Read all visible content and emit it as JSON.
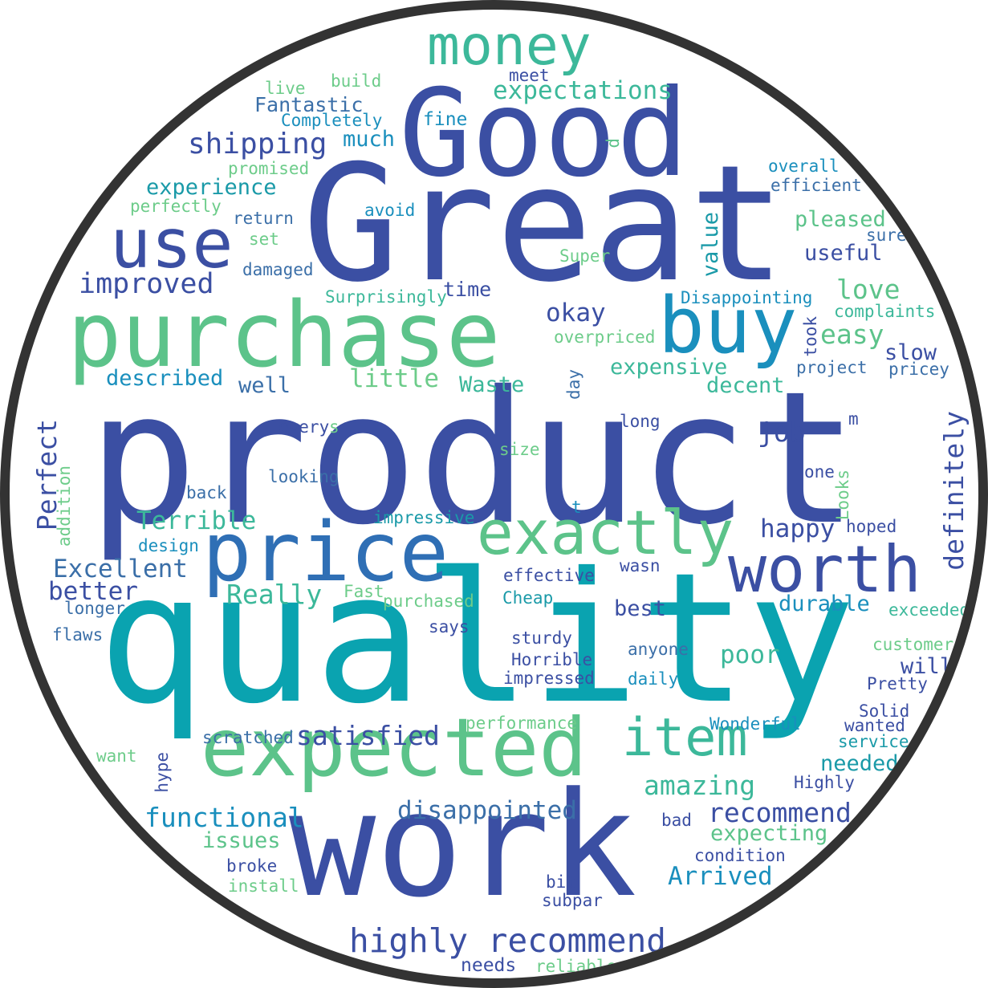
{
  "palette": {
    "blue": "#3b4fa3",
    "teal": "#00a0b0",
    "green": "#5cc38a",
    "ltgreen": "#6dcc8a",
    "mid": "#2f6fb5",
    "cyan": "#1a8fbd"
  },
  "words": [
    {
      "text": "product",
      "color": "#3b4fa3"
    },
    {
      "text": "quality",
      "color": "#0aa3b0"
    },
    {
      "text": "Great",
      "color": "#3b4fa3"
    },
    {
      "text": "Good",
      "color": "#3b4fa3"
    },
    {
      "text": "work",
      "color": "#3b4fa3"
    },
    {
      "text": "purchase",
      "color": "#5cc38a"
    },
    {
      "text": "expected",
      "color": "#5cc38a"
    },
    {
      "text": "price",
      "color": "#2f6fb5"
    },
    {
      "text": "money",
      "color": "#3cb89a"
    },
    {
      "text": "buy",
      "color": "#1a8fbd"
    },
    {
      "text": "use",
      "color": "#3b4fa3"
    },
    {
      "text": "worth",
      "color": "#3b4fa3"
    },
    {
      "text": "exactly",
      "color": "#5cc38a"
    },
    {
      "text": "item",
      "color": "#3cb89a"
    },
    {
      "text": "highly recommend",
      "color": "#3b4fa3"
    },
    {
      "text": "expectations",
      "color": "#3cb89a"
    },
    {
      "text": "shipping",
      "color": "#3b4fa3"
    },
    {
      "text": "Fantastic",
      "color": "#3b6fa8"
    },
    {
      "text": "Completely",
      "color": "#1a8fbd"
    },
    {
      "text": "build",
      "color": "#6dcc8a"
    },
    {
      "text": "live",
      "color": "#6dcc8a"
    },
    {
      "text": "meet",
      "color": "#3b4fa3"
    },
    {
      "text": "fine",
      "color": "#1a8fbd"
    },
    {
      "text": "much",
      "color": "#1a8fbd"
    },
    {
      "text": "promised",
      "color": "#6dcc8a"
    },
    {
      "text": "experience",
      "color": "#1a9aa8"
    },
    {
      "text": "perfectly",
      "color": "#6dcc8a"
    },
    {
      "text": "return",
      "color": "#3b6fa8"
    },
    {
      "text": "avoid",
      "color": "#1a8fbd"
    },
    {
      "text": "set",
      "color": "#6dcc8a"
    },
    {
      "text": "damaged",
      "color": "#3b6fa8"
    },
    {
      "text": "improved",
      "color": "#3b4fa3"
    },
    {
      "text": "Super",
      "color": "#6dcc8a"
    },
    {
      "text": "time",
      "color": "#3b4fa3"
    },
    {
      "text": "Surprisingly",
      "color": "#3cb89a"
    },
    {
      "text": "overall",
      "color": "#1a8fbd"
    },
    {
      "text": "efficient",
      "color": "#3b6fa8"
    },
    {
      "text": "pleased",
      "color": "#5cc38a"
    },
    {
      "text": "sure",
      "color": "#3b6fa8"
    },
    {
      "text": "useful",
      "color": "#3b4fa3"
    },
    {
      "text": "Disappointing",
      "color": "#1a8fbd"
    },
    {
      "text": "love",
      "color": "#5cc38a"
    },
    {
      "text": "complaints",
      "color": "#3cb89a"
    },
    {
      "text": "okay",
      "color": "#3b4fa3"
    },
    {
      "text": "overpriced",
      "color": "#6dcc8a"
    },
    {
      "text": "easy",
      "color": "#5cc38a"
    },
    {
      "text": "slow",
      "color": "#3b4fa3"
    },
    {
      "text": "project",
      "color": "#3b6fa8"
    },
    {
      "text": "pricey",
      "color": "#3b6fa8"
    },
    {
      "text": "expensive",
      "color": "#3cb89a"
    },
    {
      "text": "decent",
      "color": "#3cb89a"
    },
    {
      "text": "described",
      "color": "#1a8fbd"
    },
    {
      "text": "well",
      "color": "#3b6fa8"
    },
    {
      "text": "little",
      "color": "#6dcc8a"
    },
    {
      "text": "Waste",
      "color": "#3cb89a"
    },
    {
      "text": "job",
      "color": "#3b4fa3"
    },
    {
      "text": "long",
      "color": "#3b4fa3"
    },
    {
      "text": "m",
      "color": "#3b4fa3"
    },
    {
      "text": "every",
      "color": "#3b4fa3"
    },
    {
      "text": "s",
      "color": "#6dcc8a"
    },
    {
      "text": "size",
      "color": "#6dcc8a"
    },
    {
      "text": "looking",
      "color": "#3b6fa8"
    },
    {
      "text": "one",
      "color": "#3b4fa3"
    },
    {
      "text": "back",
      "color": "#3b6fa8"
    },
    {
      "text": "Terrible",
      "color": "#3cb89a"
    },
    {
      "text": "impressive",
      "color": "#1a9aa8"
    },
    {
      "text": "t",
      "color": "#1a8fbd"
    },
    {
      "text": "happy",
      "color": "#3b4fa3"
    },
    {
      "text": "hoped",
      "color": "#3b4fa3"
    },
    {
      "text": "design",
      "color": "#1a8fbd"
    },
    {
      "text": "Excellent",
      "color": "#3b6fa8"
    },
    {
      "text": "Really",
      "color": "#3cb89a"
    },
    {
      "text": "better",
      "color": "#3b4fa3"
    },
    {
      "text": "longer",
      "color": "#3b6fa8"
    },
    {
      "text": "Fast",
      "color": "#6dcc8a"
    },
    {
      "text": "effective",
      "color": "#3b4fa3"
    },
    {
      "text": "wasn",
      "color": "#3b4fa3"
    },
    {
      "text": "purchased",
      "color": "#6dcc8a"
    },
    {
      "text": "Cheap",
      "color": "#1a9aa8"
    },
    {
      "text": "best",
      "color": "#3b4fa3"
    },
    {
      "text": "durable",
      "color": "#1a8fbd"
    },
    {
      "text": "exceeded",
      "color": "#3cb89a"
    },
    {
      "text": "flaws",
      "color": "#3b6fa8"
    },
    {
      "text": "says",
      "color": "#3b4fa3"
    },
    {
      "text": "sturdy",
      "color": "#3b4fa3"
    },
    {
      "text": "anyone",
      "color": "#3b6fa8"
    },
    {
      "text": "poor",
      "color": "#3cb89a"
    },
    {
      "text": "customer",
      "color": "#6dcc8a"
    },
    {
      "text": "will",
      "color": "#3b4fa3"
    },
    {
      "text": "Horrible",
      "color": "#3b4fa3"
    },
    {
      "text": "impressed",
      "color": "#3b4fa3"
    },
    {
      "text": "daily",
      "color": "#1a8fbd"
    },
    {
      "text": "Pretty",
      "color": "#3b4fa3"
    },
    {
      "text": "Solid",
      "color": "#3b4fa3"
    },
    {
      "text": "performance",
      "color": "#6dcc8a"
    },
    {
      "text": "Wonderful",
      "color": "#1a8fbd"
    },
    {
      "text": "wanted",
      "color": "#3b4fa3"
    },
    {
      "text": "scratched",
      "color": "#3b6fa8"
    },
    {
      "text": "satisfied",
      "color": "#3b4fa3"
    },
    {
      "text": "service",
      "color": "#1a9aa8"
    },
    {
      "text": "want",
      "color": "#6dcc8a"
    },
    {
      "text": "needed",
      "color": "#1a9aa8"
    },
    {
      "text": "amazing",
      "color": "#3cb89a"
    },
    {
      "text": "Highly",
      "color": "#3b4fa3"
    },
    {
      "text": "functional",
      "color": "#1a8fbd"
    },
    {
      "text": "disappointed",
      "color": "#3b6fa8"
    },
    {
      "text": "recommend",
      "color": "#3b4fa3"
    },
    {
      "text": "bad",
      "color": "#3b4fa3"
    },
    {
      "text": "issues",
      "color": "#5cc38a"
    },
    {
      "text": "expecting",
      "color": "#5cc38a"
    },
    {
      "text": "condition",
      "color": "#3b4fa3"
    },
    {
      "text": "broke",
      "color": "#3b4fa3"
    },
    {
      "text": "Arrived",
      "color": "#1a8fbd"
    },
    {
      "text": "install",
      "color": "#6dcc8a"
    },
    {
      "text": "bit",
      "color": "#3b4fa3"
    },
    {
      "text": "subpar",
      "color": "#3b4fa3"
    },
    {
      "text": "needs",
      "color": "#3b4fa3"
    },
    {
      "text": "reliable",
      "color": "#6dcc8a"
    },
    {
      "text": "value",
      "color": "#1a9aa8"
    },
    {
      "text": "d",
      "color": "#5cc38a"
    },
    {
      "text": "Perfect",
      "color": "#3b4fa3"
    },
    {
      "text": "addition",
      "color": "#6dcc8a"
    },
    {
      "text": "day",
      "color": "#3b6fa8"
    },
    {
      "text": "took",
      "color": "#3b4fa3"
    },
    {
      "text": "Looks",
      "color": "#6dcc8a"
    },
    {
      "text": "definitely",
      "color": "#3b4fa3"
    },
    {
      "text": "hype",
      "color": "#3b4fa3"
    }
  ]
}
